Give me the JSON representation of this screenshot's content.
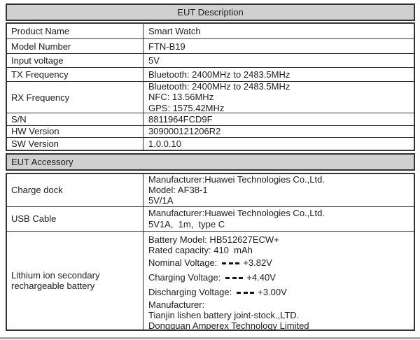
{
  "colors": {
    "section_header_bg": "#d0d0d0",
    "table_border": "#333333",
    "text": "#1c1c1c",
    "bottom_edge_line": "#a9a9a9"
  },
  "icons": {
    "dc-voltage-icon": "⎓"
  },
  "eut_description": {
    "title": "EUT Description",
    "rows": [
      {
        "label": "Product Name",
        "value": "Smart Watch"
      },
      {
        "label": "Model Number",
        "value": "FTN-B19"
      },
      {
        "label": "Input voltage",
        "value": "5V"
      },
      {
        "label": "TX Frequency",
        "value": "Bluetooth: 2400MHz to 2483.5MHz"
      },
      {
        "label": "RX Frequency",
        "lines": [
          "Bluetooth: 2400MHz to 2483.5MHz",
          "NFC: 13.56MHz",
          "GPS: 1575.42MHz"
        ]
      },
      {
        "label": "S/N",
        "value": "8811964FCD9F"
      },
      {
        "label": "HW Version",
        "value": "309000121206R2"
      },
      {
        "label": "SW Version",
        "value": "1.0.0.10"
      }
    ]
  },
  "eut_accessory": {
    "title": "EUT Accessory",
    "charge_dock": {
      "label": "Charge dock",
      "lines": [
        "Manufacturer:Huawei Technologies Co.,Ltd.",
        "Model: AF38-1",
        "5V/1A"
      ]
    },
    "usb_cable": {
      "label": "USB Cable",
      "lines": [
        "Manufacturer:Huawei Technologies Co.,Ltd.",
        "5V1A,  1m,  type C"
      ]
    },
    "battery": {
      "label": "Lithium ion secondary rechargeable battery",
      "model_line": "Battery Model: HB512627ECW+",
      "capacity_line": "Rated capacity: 410  mAh",
      "voltages": [
        {
          "name": "Nominal Voltage:",
          "value": "+3.82V"
        },
        {
          "name": "Charging Voltage:",
          "value": "+4.40V"
        },
        {
          "name": "Discharging Voltage:",
          "value": "+3.00V"
        }
      ],
      "manufacturer_label": "Manufacturer:",
      "manufacturers": [
        "Tianjin lishen battery joint-stock.,LTD.",
        "Dongguan Amperex Technology Limited"
      ]
    }
  }
}
